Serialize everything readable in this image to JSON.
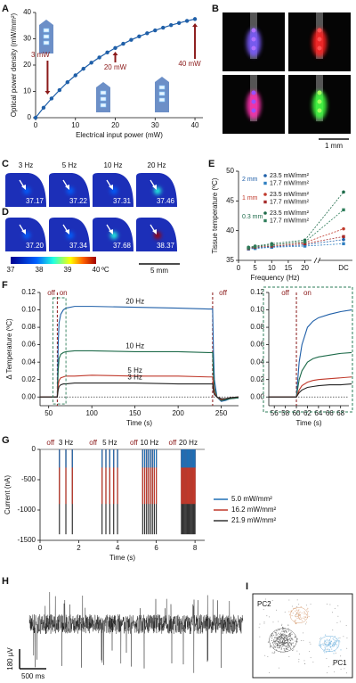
{
  "panel_labels": [
    "A",
    "B",
    "C",
    "D",
    "E",
    "F",
    "G",
    "H",
    "I"
  ],
  "chart_data": [
    {
      "type": "line",
      "x": [
        0,
        2,
        4,
        6,
        8,
        10,
        12,
        14,
        16,
        18,
        20,
        22,
        24,
        26,
        28,
        30,
        32,
        34,
        36,
        38,
        40
      ],
      "values": [
        0,
        3.8,
        7.3,
        10.5,
        13.5,
        16.1,
        18.6,
        20.9,
        22.9,
        24.8,
        26.5,
        28.1,
        29.6,
        30.9,
        32.1,
        33.2,
        34.2,
        35.2,
        36.0,
        36.8,
        37.5
      ],
      "color": "#1f5fa8",
      "xlim": [
        0,
        42
      ],
      "ylim": [
        0,
        40
      ],
      "xticks": [
        0,
        10,
        20,
        30,
        40
      ],
      "yticks": [
        0,
        10,
        20,
        30,
        40
      ],
      "xlabel": "Electrical input power (mW)",
      "ylabel": "Optical power density (mW/mm²)",
      "annotations": [
        {
          "text": "3 mW",
          "x": 3
        },
        {
          "text": "20 mW",
          "x": 20
        },
        {
          "text": "40 mW",
          "x": 40
        }
      ],
      "annotation_color": "#8b1a1a"
    },
    {
      "type": "line",
      "x": [
        3,
        5,
        10,
        20
      ],
      "dc_label": "DC",
      "series": [
        {
          "group": "2 mm",
          "name": "23.5 mW/mm²",
          "color": "#1f5fa8",
          "marker": "circle",
          "values": [
            37.0,
            37.1,
            37.3,
            37.6
          ],
          "dc": 38.5
        },
        {
          "group": "2 mm",
          "name": "17.7 mW/mm²",
          "color": "#2f7fc1",
          "marker": "square",
          "values": [
            36.9,
            37.0,
            37.2,
            37.4
          ],
          "dc": 37.8
        },
        {
          "group": "1 mm",
          "name": "23.5 mW/mm²",
          "color": "#c0392b",
          "marker": "circle",
          "values": [
            37.1,
            37.3,
            37.6,
            38.0
          ],
          "dc": 40.3
        },
        {
          "group": "1 mm",
          "name": "17.7 mW/mm²",
          "color": "#a52a2a",
          "marker": "square",
          "values": [
            37.0,
            37.2,
            37.4,
            37.8
          ],
          "dc": 39.0
        },
        {
          "group": "0.3 mm",
          "name": "23.5 mW/mm²",
          "color": "#1e6b4a",
          "marker": "circle",
          "values": [
            37.2,
            37.4,
            37.8,
            38.4
          ],
          "dc": 46.5
        },
        {
          "group": "0.3 mm",
          "name": "17.7 mW/mm²",
          "color": "#2e7d5a",
          "marker": "square",
          "values": [
            37.1,
            37.3,
            37.6,
            38.1
          ],
          "dc": 43.5
        }
      ],
      "xlim": [
        0,
        22
      ],
      "ylim": [
        35,
        50
      ],
      "xticks": [
        0,
        5,
        10,
        15,
        20
      ],
      "yticks": [
        35,
        40,
        45,
        50
      ],
      "xlabel": "Frequency (Hz)",
      "ylabel": "Tissue temperature (ºC)"
    },
    {
      "type": "line",
      "x": [
        40,
        55,
        59,
        60,
        61,
        62,
        64,
        67,
        70,
        80,
        100,
        150,
        200,
        235,
        240,
        241,
        242,
        245,
        250,
        255,
        260,
        270
      ],
      "series": [
        {
          "name": "20 Hz",
          "color": "#1f5fa8",
          "values": [
            0,
            0,
            0,
            0,
            0.06,
            0.085,
            0.095,
            0.1,
            0.102,
            0.104,
            0.104,
            0.103,
            0.102,
            0.101,
            0.101,
            0.05,
            0.02,
            0,
            -0.005,
            -0.004,
            -0.002,
            -0.001
          ]
        },
        {
          "name": "10 Hz",
          "color": "#1e6b4a",
          "values": [
            0,
            0,
            0,
            0,
            0.03,
            0.044,
            0.049,
            0.051,
            0.052,
            0.053,
            0.053,
            0.052,
            0.052,
            0.051,
            0.051,
            0.025,
            0.01,
            0,
            -0.004,
            -0.003,
            -0.002,
            -0.001
          ]
        },
        {
          "name": "5 Hz",
          "color": "#c0392b",
          "values": [
            0,
            0,
            0,
            0,
            0.013,
            0.019,
            0.022,
            0.023,
            0.024,
            0.024,
            0.025,
            0.024,
            0.024,
            0.023,
            0.023,
            0.012,
            0.005,
            0,
            -0.003,
            -0.002,
            -0.001,
            0
          ]
        },
        {
          "name": "3 Hz",
          "color": "#222222",
          "values": [
            0,
            0,
            0,
            0,
            0.008,
            0.012,
            0.014,
            0.015,
            0.015,
            0.016,
            0.016,
            0.016,
            0.015,
            0.015,
            0.015,
            0.007,
            0.003,
            0,
            -0.002,
            -0.002,
            -0.001,
            0
          ]
        }
      ],
      "xlim": [
        40,
        270
      ],
      "ylim": [
        -0.01,
        0.12
      ],
      "xticks": [
        50,
        100,
        150,
        200,
        250
      ],
      "yticks": [
        {
          "value": 0,
          "label": "0.00"
        },
        {
          "value": 0.02,
          "label": "0.02"
        },
        {
          "value": 0.04,
          "label": "0.04"
        },
        {
          "value": 0.06,
          "label": "0.06"
        },
        {
          "value": 0.08,
          "label": "0.08"
        },
        {
          "value": 0.1,
          "label": "0.10"
        },
        {
          "value": 0.12,
          "label": "0.12"
        }
      ],
      "xlabel": "Time (s)",
      "ylabel": "Δ Temperature (ºC)",
      "annotations": [
        {
          "text": "off",
          "x": 53
        },
        {
          "text": "on",
          "x": 67
        },
        {
          "text": "off",
          "x": 252
        }
      ],
      "stim_lines": [
        60,
        240
      ],
      "annotation_color": "#8b1a1a"
    },
    {
      "type": "line",
      "x": [
        55,
        57,
        59,
        60,
        60.5,
        61,
        62,
        63,
        64,
        66,
        68,
        70
      ],
      "series": [
        {
          "color": "#1f5fa8",
          "values": [
            0,
            0,
            0,
            0,
            0.04,
            0.06,
            0.08,
            0.087,
            0.091,
            0.095,
            0.098,
            0.1
          ]
        },
        {
          "color": "#1e6b4a",
          "values": [
            0,
            0,
            0,
            0,
            0.02,
            0.03,
            0.04,
            0.044,
            0.046,
            0.048,
            0.05,
            0.051
          ]
        },
        {
          "color": "#c0392b",
          "values": [
            0,
            0,
            0,
            0,
            0.008,
            0.013,
            0.017,
            0.019,
            0.02,
            0.021,
            0.022,
            0.023
          ]
        },
        {
          "color": "#222222",
          "values": [
            0,
            0,
            0,
            0,
            0.005,
            0.008,
            0.011,
            0.012,
            0.013,
            0.014,
            0.014,
            0.015
          ]
        }
      ],
      "xlim": [
        55,
        69.5
      ],
      "ylim": [
        -0.01,
        0.12
      ],
      "xticks": [
        56,
        58,
        60,
        62,
        64,
        66,
        68
      ],
      "yticks": [
        {
          "value": 0,
          "label": "0.00"
        },
        {
          "value": 0.02,
          "label": "0.02"
        },
        {
          "value": 0.04,
          "label": "0.04"
        },
        {
          "value": 0.06,
          "label": "0.06"
        },
        {
          "value": 0.08,
          "label": "0.08"
        },
        {
          "value": 0.1,
          "label": "0.10"
        },
        {
          "value": 0.12,
          "label": "0.12"
        }
      ],
      "xlabel": "Time (s)",
      "annotations": [
        {
          "text": "off",
          "x": 58
        },
        {
          "text": "on",
          "x": 62
        }
      ],
      "stim_lines": [
        60
      ],
      "annotation_color": "#8b1a1a"
    },
    {
      "type": "pulses",
      "categories": [
        "3 Hz",
        "5 Hz",
        "10 Hz",
        "20 Hz"
      ],
      "stim_hz": [
        3,
        5,
        10,
        20
      ],
      "stim_windows": [
        [
          1,
          1.67
        ],
        [
          3.2,
          4.0
        ],
        [
          5.3,
          6.0
        ],
        [
          7.3,
          8.0
        ]
      ],
      "off_label": "off",
      "label_color": "#8b1a1a",
      "series": [
        {
          "name": "5.0 mW/mm²",
          "color": "#1f6fb5",
          "values": [
            -300,
            -300,
            -300,
            -300
          ]
        },
        {
          "name": "16.2 mW/mm²",
          "color": "#c0392b",
          "values": [
            -900,
            -900,
            -900,
            -900
          ]
        },
        {
          "name": "21.9 mW/mm²",
          "color": "#333333",
          "values": [
            -1400,
            -1400,
            -1400,
            -1400
          ]
        }
      ],
      "xlim": [
        0,
        8.5
      ],
      "ylim": [
        -1500,
        0
      ],
      "xticks": [
        0,
        2,
        4,
        6,
        8
      ],
      "yticks": [
        0,
        -500,
        -1000,
        -1500
      ],
      "xlabel": "Time (s)",
      "ylabel": "Current (nA)"
    }
  ],
  "panel_b": {
    "scale_bar": "1 mm"
  },
  "thermal": {
    "frequencies": [
      "3 Hz",
      "5 Hz",
      "10 Hz",
      "20 Hz"
    ],
    "C": [
      "37.17",
      "37.22",
      "37.31",
      "37.46"
    ],
    "D": [
      "37.20",
      "37.34",
      "37.68",
      "38.37"
    ],
    "colorbar": {
      "ticks": [
        37,
        38,
        39,
        40
      ],
      "unit": "ºC"
    },
    "scale_bar": "5 mm"
  },
  "panel_h": {
    "scale_y": "180 µV",
    "scale_x": "500 ms"
  },
  "panel_i": {
    "x_label": "PC1",
    "y_label": "PC2"
  }
}
